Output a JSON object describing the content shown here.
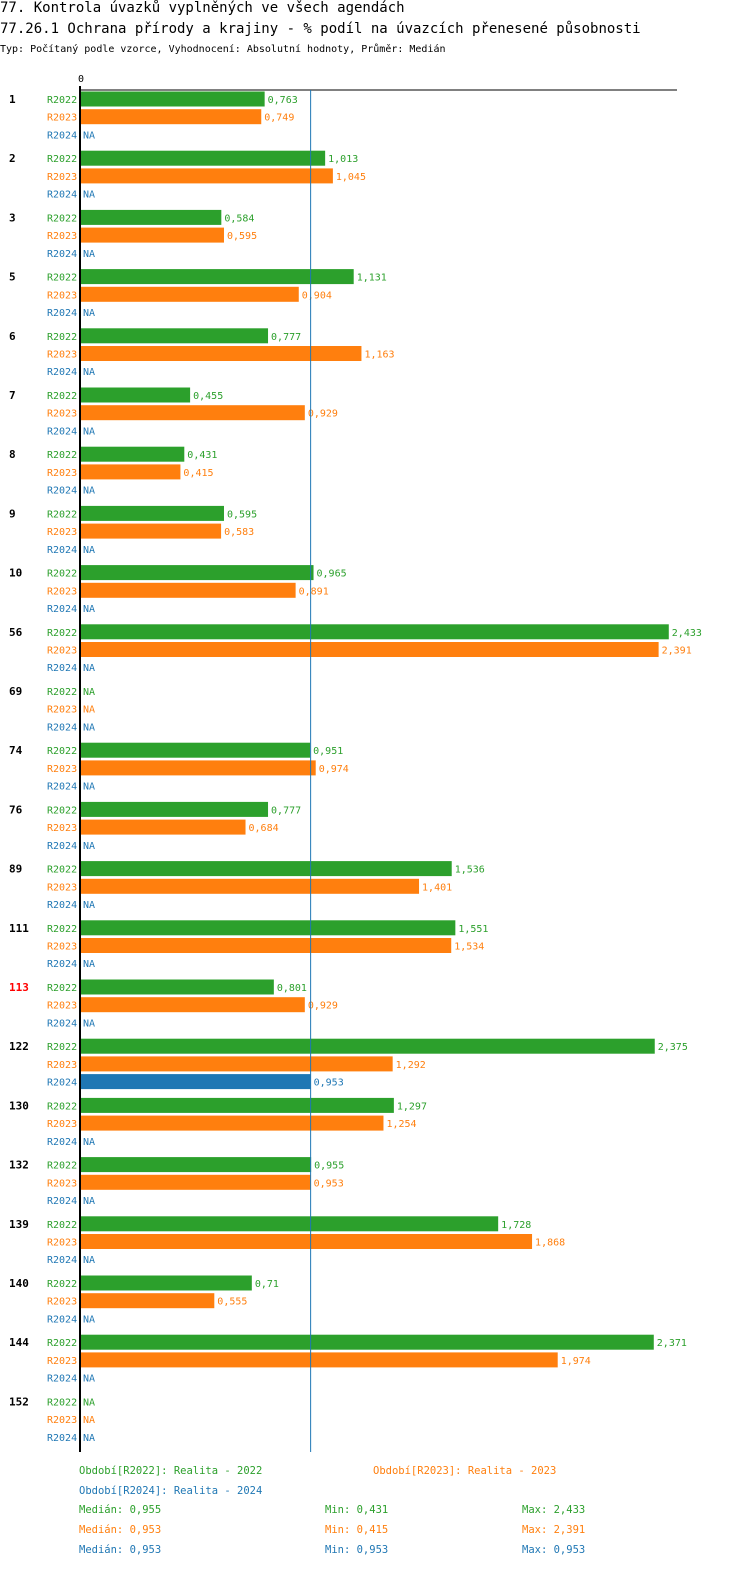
{
  "header": {
    "title": "77. Kontrola úvazků vyplněných ve všech agendách",
    "subtitle": "77.26.1 Ochrana přírody a krajiny - % podíl na úvazcích přenesené působnosti",
    "info": "Typ: Počítaný podle vzorce, Vyhodnocení: Absolutní hodnoty, Průměr: Medián"
  },
  "colors": {
    "r2022": "#2ca02c",
    "r2023": "#ff7f0e",
    "r2024": "#1f77b4",
    "highlight": "#ff0000",
    "axis": "#000000",
    "median": "#1f77b4"
  },
  "chart_data": {
    "type": "bar",
    "orientation": "horizontal",
    "axis_zero_label": "0",
    "xlim": [
      0,
      2.5
    ],
    "median_line": 0.953,
    "na_label": "NA",
    "series_names": [
      "R2022",
      "R2023",
      "R2024"
    ],
    "categories": [
      "1",
      "2",
      "3",
      "5",
      "6",
      "7",
      "8",
      "9",
      "10",
      "56",
      "69",
      "74",
      "76",
      "89",
      "111",
      "113",
      "122",
      "130",
      "132",
      "139",
      "140",
      "144",
      "152"
    ],
    "highlighted_category": "113",
    "series": [
      {
        "name": "R2022",
        "values": [
          0.763,
          1.013,
          0.584,
          1.131,
          0.777,
          0.455,
          0.431,
          0.595,
          0.965,
          2.433,
          null,
          0.951,
          0.777,
          1.536,
          1.551,
          0.801,
          2.375,
          1.297,
          0.955,
          1.728,
          0.71,
          2.371,
          null
        ],
        "labels": [
          "0,763",
          "1,013",
          "0,584",
          "1,131",
          "0,777",
          "0,455",
          "0,431",
          "0,595",
          "0,965",
          "2,433",
          "NA",
          "0,951",
          "0,777",
          "1,536",
          "1,551",
          "0,801",
          "2,375",
          "1,297",
          "0,955",
          "1,728",
          "0,71",
          "2,371",
          "NA"
        ]
      },
      {
        "name": "R2023",
        "values": [
          0.749,
          1.045,
          0.595,
          0.904,
          1.163,
          0.929,
          0.415,
          0.583,
          0.891,
          2.391,
          null,
          0.974,
          0.684,
          1.401,
          1.534,
          0.929,
          1.292,
          1.254,
          0.953,
          1.868,
          0.555,
          1.974,
          null
        ],
        "labels": [
          "0,749",
          "1,045",
          "0,595",
          "0,904",
          "1,163",
          "0,929",
          "0,415",
          "0,583",
          "0,891",
          "2,391",
          "NA",
          "0,974",
          "0,684",
          "1,401",
          "1,534",
          "0,929",
          "1,292",
          "1,254",
          "0,953",
          "1,868",
          "0,555",
          "1,974",
          "NA"
        ]
      },
      {
        "name": "R2024",
        "values": [
          null,
          null,
          null,
          null,
          null,
          null,
          null,
          null,
          null,
          null,
          null,
          null,
          null,
          null,
          null,
          null,
          0.953,
          null,
          null,
          null,
          null,
          null,
          null
        ],
        "labels": [
          "NA",
          "NA",
          "NA",
          "NA",
          "NA",
          "NA",
          "NA",
          "NA",
          "NA",
          "NA",
          "NA",
          "NA",
          "NA",
          "NA",
          "NA",
          "NA",
          "0,953",
          "NA",
          "NA",
          "NA",
          "NA",
          "NA",
          "NA"
        ]
      }
    ]
  },
  "legend": {
    "r2022": "Období[R2022]: Realita - 2022",
    "r2023": "Období[R2023]: Realita - 2023",
    "r2024": "Období[R2024]: Realita - 2024"
  },
  "stats": [
    {
      "median": "Medián: 0,955",
      "min": "Min: 0,431",
      "max": "Max: 2,433"
    },
    {
      "median": "Medián: 0,953",
      "min": "Min: 0,415",
      "max": "Max: 2,391"
    },
    {
      "median": "Medián: 0,953",
      "min": "Min: 0,953",
      "max": "Max: 0,953"
    }
  ]
}
